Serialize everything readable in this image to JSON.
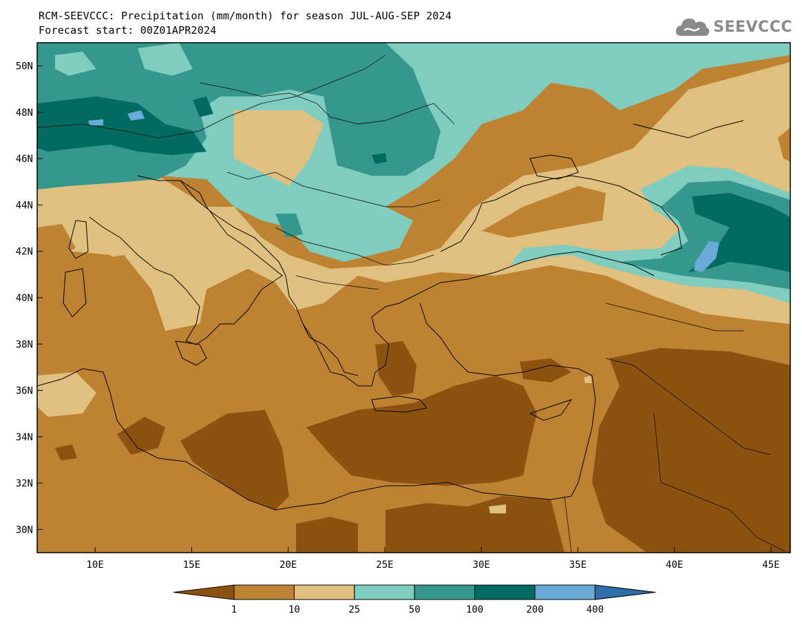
{
  "title_line1": "RCM-SEEVCCC: Precipitation (mm/month) for season JUL-AUG-SEP 2024",
  "title_line2": "Forecast start: 00Z01APR2024",
  "logo_text": "SEEVCCC",
  "logo_icon": "cloud-icon",
  "map": {
    "lon_range": [
      7,
      46
    ],
    "lat_range": [
      29,
      51
    ],
    "lon_ticks": [
      10,
      15,
      20,
      25,
      30,
      35,
      40,
      45
    ],
    "lon_tick_labels": [
      "10E",
      "15E",
      "20E",
      "25E",
      "30E",
      "35E",
      "40E",
      "45E"
    ],
    "lat_ticks": [
      30,
      32,
      34,
      36,
      38,
      40,
      42,
      44,
      46,
      48,
      50
    ],
    "lat_tick_labels": [
      "30N",
      "32N",
      "34N",
      "36N",
      "38N",
      "40N",
      "42N",
      "44N",
      "46N",
      "48N",
      "50N"
    ]
  },
  "colorbar": {
    "colors": [
      "#8b5210",
      "#bd8232",
      "#e0c07e",
      "#7ecdbf",
      "#36978e",
      "#006b61",
      "#6aaad8",
      "#2f6fa9"
    ],
    "bounds": [
      "1",
      "10",
      "25",
      "50",
      "100",
      "200",
      "400"
    ]
  }
}
